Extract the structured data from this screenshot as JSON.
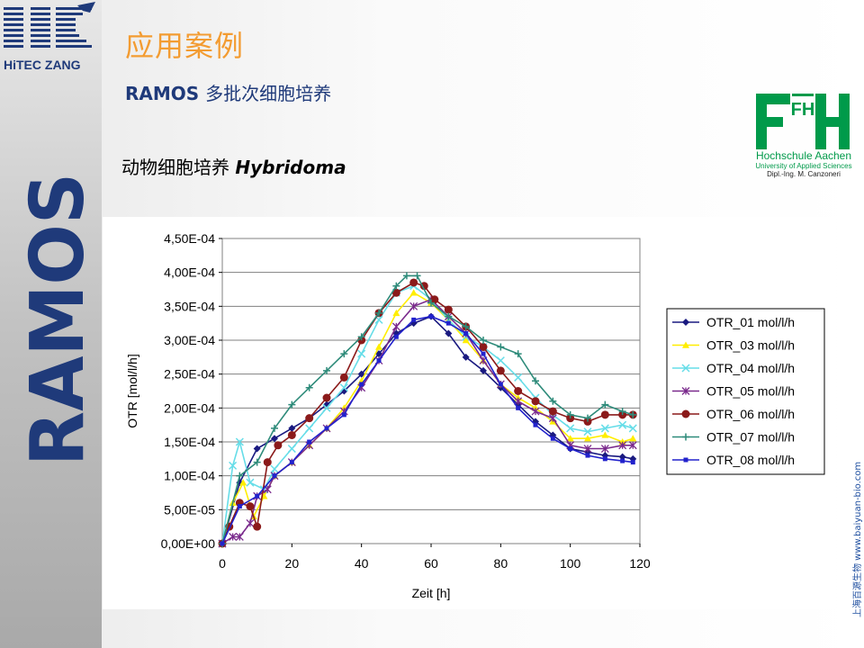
{
  "slide": {
    "title": "应用案例",
    "subtitle_bold": "RAMOS",
    "subtitle_cn": "多批次细胞培养",
    "section_label_cn": "动物细胞培养",
    "section_label_latin": "Hybridoma",
    "side_url": "上海百源生物 www.baiyuan-bio.com"
  },
  "brand": {
    "logo_text": "HiTEC ZANG",
    "vertical_text": "RAMOS",
    "color": "#1f3a7a"
  },
  "institution": {
    "mark": "FH",
    "name": "Hochschule Aachen",
    "tagline": "University of Applied Sciences",
    "author": "Dipl.-Ing. M. Canzoneri",
    "color": "#009a4a"
  },
  "chart_data": {
    "type": "line",
    "title": "",
    "xlabel": "Zeit [h]",
    "ylabel": "OTR [mol/l/h]",
    "xlim": [
      0,
      120
    ],
    "ylim": [
      0,
      0.00045
    ],
    "x_ticks": [
      0,
      20,
      40,
      60,
      80,
      100,
      120
    ],
    "x_tick_labels": [
      "0",
      "20",
      "40",
      "60",
      "80",
      "100",
      "120"
    ],
    "y_ticks": [
      0,
      5e-05,
      0.0001,
      0.00015,
      0.0002,
      0.00025,
      0.0003,
      0.00035,
      0.0004,
      0.00045
    ],
    "y_tick_labels": [
      "0,00E+00",
      "5,00E-05",
      "1,00E-04",
      "1,50E-04",
      "2,00E-04",
      "2,50E-04",
      "3,00E-04",
      "3,50E-04",
      "4,00E-04",
      "4,50E-04"
    ],
    "grid": "horizontal",
    "legend_position": "right",
    "series": [
      {
        "name": "OTR_01 mol/l/h",
        "color": "#1a1a80",
        "marker": "diamond",
        "x": [
          0,
          5,
          10,
          15,
          20,
          25,
          30,
          35,
          40,
          45,
          50,
          55,
          60,
          65,
          70,
          75,
          80,
          85,
          90,
          95,
          100,
          105,
          110,
          115,
          118
        ],
        "y": [
          0,
          9e-05,
          0.00014,
          0.000155,
          0.00017,
          0.000185,
          0.000205,
          0.000225,
          0.00025,
          0.00028,
          0.00031,
          0.000325,
          0.000335,
          0.00031,
          0.000275,
          0.000255,
          0.00023,
          0.000205,
          0.00018,
          0.00016,
          0.00014,
          0.000135,
          0.00013,
          0.000128,
          0.000125
        ]
      },
      {
        "name": "OTR_03 mol/l/h",
        "color": "#ffee00",
        "marker": "triangle",
        "x": [
          0,
          3,
          6,
          9,
          12,
          15,
          20,
          25,
          30,
          35,
          40,
          45,
          50,
          55,
          60,
          65,
          70,
          75,
          80,
          85,
          90,
          95,
          100,
          105,
          110,
          115,
          118
        ],
        "y": [
          0,
          6e-05,
          9e-05,
          4e-05,
          7e-05,
          0.0001,
          0.00012,
          0.000145,
          0.00017,
          0.0002,
          0.00024,
          0.00029,
          0.00034,
          0.00037,
          0.000355,
          0.00033,
          0.0003,
          0.00027,
          0.000235,
          0.000215,
          0.0002,
          0.00018,
          0.000155,
          0.000155,
          0.00016,
          0.00015,
          0.000155
        ]
      },
      {
        "name": "OTR_04 mol/l/h",
        "color": "#66dde8",
        "marker": "x",
        "x": [
          0,
          3,
          5,
          8,
          12,
          15,
          20,
          25,
          30,
          35,
          40,
          45,
          50,
          55,
          60,
          65,
          70,
          75,
          80,
          85,
          90,
          95,
          100,
          105,
          110,
          115,
          118
        ],
        "y": [
          0,
          0.000115,
          0.00015,
          9e-05,
          8e-05,
          0.00011,
          0.00014,
          0.00017,
          0.0002,
          0.00023,
          0.00028,
          0.00033,
          0.00037,
          0.00038,
          0.00036,
          0.00033,
          0.000305,
          0.00029,
          0.00027,
          0.000245,
          0.000215,
          0.00019,
          0.00017,
          0.000165,
          0.00017,
          0.000175,
          0.00017
        ]
      },
      {
        "name": "OTR_05 mol/l/h",
        "color": "#7a2a8c",
        "marker": "asterisk",
        "x": [
          0,
          3,
          5,
          8,
          10,
          13,
          15,
          20,
          25,
          30,
          35,
          40,
          45,
          50,
          55,
          60,
          65,
          70,
          75,
          80,
          85,
          90,
          95,
          100,
          105,
          110,
          115,
          118
        ],
        "y": [
          0,
          1e-05,
          1e-05,
          3e-05,
          7e-05,
          8e-05,
          0.0001,
          0.00012,
          0.000145,
          0.00017,
          0.000195,
          0.00023,
          0.00027,
          0.00032,
          0.00035,
          0.00036,
          0.000335,
          0.00031,
          0.00027,
          0.000235,
          0.00021,
          0.000195,
          0.000185,
          0.000145,
          0.00014,
          0.00014,
          0.000145,
          0.000145
        ]
      },
      {
        "name": "OTR_06 mol/l/h",
        "color": "#8b1a1a",
        "marker": "circle",
        "x": [
          0,
          2,
          5,
          8,
          10,
          13,
          16,
          20,
          25,
          30,
          35,
          40,
          45,
          50,
          55,
          58,
          61,
          65,
          70,
          75,
          80,
          85,
          90,
          95,
          100,
          105,
          110,
          115,
          118
        ],
        "y": [
          0,
          2.5e-05,
          6e-05,
          5.5e-05,
          2.5e-05,
          0.00012,
          0.000145,
          0.00016,
          0.000185,
          0.000215,
          0.000245,
          0.0003,
          0.00034,
          0.00037,
          0.000385,
          0.00038,
          0.00036,
          0.000345,
          0.00032,
          0.00029,
          0.000255,
          0.000225,
          0.00021,
          0.000195,
          0.000185,
          0.00018,
          0.00019,
          0.00019,
          0.00019
        ]
      },
      {
        "name": "OTR_07 mol/l/h",
        "color": "#2e8b7a",
        "marker": "plus",
        "x": [
          0,
          5,
          10,
          15,
          20,
          25,
          30,
          35,
          40,
          45,
          50,
          53,
          56,
          60,
          65,
          70,
          75,
          80,
          85,
          90,
          95,
          100,
          105,
          110,
          115,
          118
        ],
        "y": [
          0,
          0.0001,
          0.00012,
          0.00017,
          0.000205,
          0.00023,
          0.000255,
          0.00028,
          0.000305,
          0.00034,
          0.00038,
          0.000395,
          0.000395,
          0.000355,
          0.000335,
          0.00032,
          0.0003,
          0.00029,
          0.00028,
          0.00024,
          0.00021,
          0.00019,
          0.000185,
          0.000205,
          0.000195,
          0.00019
        ]
      },
      {
        "name": "OTR_08 mol/l/h",
        "color": "#2222cc",
        "marker": "square",
        "x": [
          0,
          5,
          10,
          15,
          20,
          25,
          30,
          35,
          40,
          45,
          50,
          55,
          60,
          65,
          70,
          75,
          80,
          85,
          90,
          95,
          100,
          105,
          110,
          115,
          118
        ],
        "y": [
          0,
          5.5e-05,
          7e-05,
          0.0001,
          0.00012,
          0.00015,
          0.00017,
          0.00019,
          0.000235,
          0.00027,
          0.000305,
          0.00033,
          0.000335,
          0.000325,
          0.00031,
          0.00028,
          0.000235,
          0.0002,
          0.000175,
          0.000155,
          0.00014,
          0.00013,
          0.000125,
          0.000122,
          0.00012
        ]
      }
    ]
  }
}
